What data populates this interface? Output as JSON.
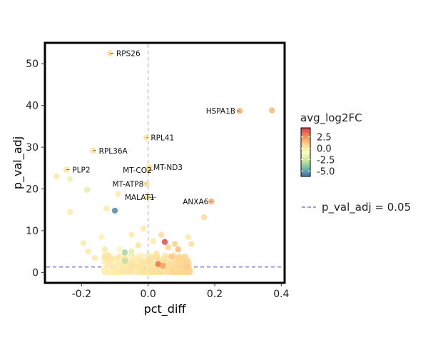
{
  "chart_data": {
    "type": "scatter",
    "xlabel": "pct_diff",
    "ylabel": "p_val_adj",
    "xlim": [
      -0.31,
      0.41
    ],
    "ylim": [
      -2.5,
      55
    ],
    "x_ticks": [
      -0.2,
      0.0,
      0.2,
      0.4
    ],
    "x_tick_labels": [
      "-0.2",
      "0.0",
      "0.2",
      "0.4"
    ],
    "y_ticks": [
      0,
      10,
      20,
      30,
      40,
      50
    ],
    "y_tick_labels": [
      "0",
      "10",
      "20",
      "30",
      "40",
      "50"
    ],
    "grid": false,
    "color_scale": {
      "title": "avg_log2FC",
      "ticks": [
        2.5,
        0.0,
        -2.5,
        -5.0
      ],
      "tick_labels": [
        "2.5",
        "0.0",
        "-2.5",
        "-5.0"
      ],
      "range": [
        -6.2,
        4.5
      ],
      "colors": [
        "#3f6fb5",
        "#72bba4",
        "#cfe9a0",
        "#fcfdbf",
        "#fcd38e",
        "#f08b54",
        "#d53e4f"
      ]
    },
    "reference_lines": [
      {
        "axis": "x",
        "value": 0,
        "style": "dashed",
        "color": "#bbbbbb"
      },
      {
        "axis": "y",
        "value": 1.3,
        "style": "dashed",
        "color": "#7b7fd0",
        "legend": "p_val_adj = 0.05"
      }
    ],
    "legend_position": "right",
    "labeled_points": [
      {
        "gene": "RPS26",
        "x": -0.115,
        "y": 52.5,
        "log2fc": 0.4
      },
      {
        "gene": "HSPA1B",
        "x": 0.275,
        "y": 38.7,
        "log2fc": 1.7
      },
      {
        "gene": "RPL41",
        "x": -0.005,
        "y": 32.3,
        "log2fc": 0.2
      },
      {
        "gene": "RPL36A",
        "x": -0.165,
        "y": 29.2,
        "log2fc": 0.3
      },
      {
        "gene": "MT-CO2",
        "x": 0.0,
        "y": 24.5,
        "log2fc": 0.5
      },
      {
        "gene": "MT-ND3",
        "x": 0.003,
        "y": 25.2,
        "log2fc": 0.4
      },
      {
        "gene": "PLP2",
        "x": -0.245,
        "y": 24.6,
        "log2fc": 0.3
      },
      {
        "gene": "MT-ATP8",
        "x": -0.005,
        "y": 21.2,
        "log2fc": 0.4
      },
      {
        "gene": "MALAT1",
        "x": 0.0,
        "y": 18.0,
        "log2fc": 0.2
      },
      {
        "gene": "ANXA6",
        "x": 0.19,
        "y": 17.0,
        "log2fc": 1.8
      }
    ],
    "points": [
      {
        "x": 0.372,
        "y": 38.8,
        "c": 1.6
      },
      {
        "x": 0.168,
        "y": 13.2,
        "c": 0.6
      },
      {
        "x": -0.275,
        "y": 23.0,
        "c": 0.0
      },
      {
        "x": -0.235,
        "y": 22.4,
        "c": -1.6
      },
      {
        "x": -0.235,
        "y": 14.5,
        "c": 0.0
      },
      {
        "x": -0.183,
        "y": 19.8,
        "c": -2.0
      },
      {
        "x": -0.09,
        "y": 18.8,
        "c": 0.0
      },
      {
        "x": -0.125,
        "y": 15.3,
        "c": 0.0
      },
      {
        "x": -0.1,
        "y": 14.8,
        "c": -5.6
      },
      {
        "x": 0.05,
        "y": 7.3,
        "c": 4.2
      },
      {
        "x": -0.195,
        "y": 7.0,
        "c": 0.0
      },
      {
        "x": -0.18,
        "y": 5.0,
        "c": 0.1
      },
      {
        "x": -0.14,
        "y": 8.5,
        "c": -0.4
      },
      {
        "x": -0.13,
        "y": 5.5,
        "c": 0.0
      },
      {
        "x": -0.12,
        "y": 4.0,
        "c": 0.2
      },
      {
        "x": -0.085,
        "y": 5.5,
        "c": -1.2
      },
      {
        "x": -0.07,
        "y": 4.8,
        "c": -3.5
      },
      {
        "x": -0.05,
        "y": 5.0,
        "c": -2.0
      },
      {
        "x": -0.05,
        "y": 9.0,
        "c": 0.0
      },
      {
        "x": -0.03,
        "y": 6.5,
        "c": 0.3
      },
      {
        "x": -0.015,
        "y": 10.5,
        "c": 0.0
      },
      {
        "x": 0.04,
        "y": 9.0,
        "c": 0.5
      },
      {
        "x": 0.06,
        "y": 6.0,
        "c": 0.9
      },
      {
        "x": 0.08,
        "y": 6.8,
        "c": 1.0
      },
      {
        "x": 0.09,
        "y": 5.5,
        "c": 1.6
      },
      {
        "x": 0.12,
        "y": 8.5,
        "c": 0.0
      },
      {
        "x": 0.11,
        "y": 3.8,
        "c": 0.7
      },
      {
        "x": 0.13,
        "y": 6.8,
        "c": 0.4
      },
      {
        "x": -0.07,
        "y": 2.8,
        "c": -3.0
      },
      {
        "x": -0.11,
        "y": 3.0,
        "c": 0.0
      },
      {
        "x": 0.07,
        "y": 3.8,
        "c": 1.3
      },
      {
        "x": 0.03,
        "y": 2.0,
        "c": 3.2
      },
      {
        "x": 0.045,
        "y": 1.6,
        "c": 2.2
      },
      {
        "x": 0.025,
        "y": 4.5,
        "c": 0.3
      },
      {
        "x": 0.0,
        "y": 3.0,
        "c": 0.5
      },
      {
        "x": -0.04,
        "y": 3.2,
        "c": -0.2
      },
      {
        "x": -0.02,
        "y": 2.0,
        "c": 0.2
      },
      {
        "x": 0.1,
        "y": 2.6,
        "c": 0.6
      },
      {
        "x": -0.16,
        "y": 3.5,
        "c": 0.0
      },
      {
        "x": 0.06,
        "y": 1.2,
        "c": 0.4
      },
      {
        "x": 0.015,
        "y": 7.5,
        "c": 0.0
      }
    ]
  }
}
